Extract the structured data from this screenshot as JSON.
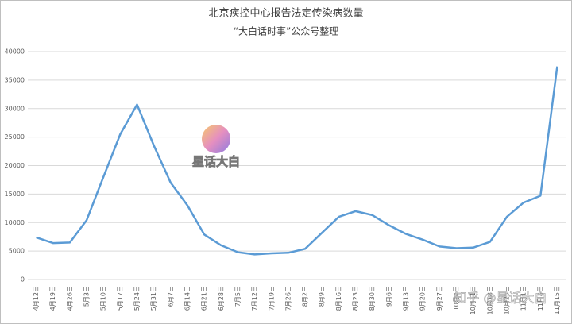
{
  "chart_data": {
    "type": "line",
    "title": "北京疾控中心报告法定传染病数量",
    "subtitle": "“大白话时事”公众号整理",
    "annotations": [
      "星话大白",
      "知乎 @星话大白"
    ],
    "categories": [
      "4月12日",
      "4月19日",
      "4月26日",
      "5月3日",
      "5月10日",
      "5月17日",
      "5月24日",
      "5月31日",
      "6月7日",
      "6月14日",
      "6月21日",
      "6月28日",
      "7月5日",
      "7月12日",
      "7月19日",
      "7月26日",
      "8月2日",
      "8月9日",
      "8月16日",
      "8月23日",
      "8月30日",
      "9月6日",
      "9月13日",
      "9月20日",
      "9月27日",
      "10月4日",
      "10月11日",
      "10月18日",
      "10月25日",
      "11月1日",
      "11月8日",
      "11月15日"
    ],
    "values": [
      7400,
      6400,
      6500,
      10400,
      18000,
      25500,
      30700,
      23500,
      17000,
      13000,
      7900,
      6000,
      4800,
      4400,
      4600,
      4700,
      5400,
      8200,
      11000,
      12000,
      11300,
      9500,
      8000,
      7000,
      5800,
      5500,
      5600,
      6600,
      11000,
      13500,
      14700,
      37400
    ],
    "color": "#5b9bd5",
    "ylim": [
      0,
      40000
    ],
    "yticks": [
      0,
      5000,
      10000,
      15000,
      20000,
      25000,
      30000,
      35000,
      40000
    ],
    "grid": true
  }
}
